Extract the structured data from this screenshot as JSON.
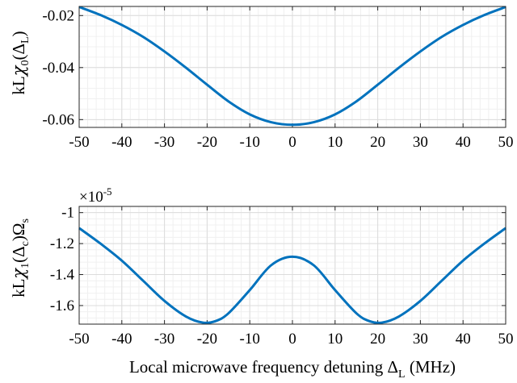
{
  "chart_data": [
    {
      "type": "line",
      "ylabel": {
        "base": "kL",
        "greek": "χ",
        "sub0": "0",
        "open": "(",
        "delta": "Δ",
        "sub1": "L",
        "close": ")"
      },
      "xlim": [
        -50,
        50
      ],
      "ylim": [
        -0.063,
        -0.0165
      ],
      "xticks": [
        -50,
        -40,
        -30,
        -20,
        -10,
        0,
        10,
        20,
        30,
        40,
        50
      ],
      "xtick_labels": [
        "-50",
        "-40",
        "-30",
        "-20",
        "-10",
        "0",
        "10",
        "20",
        "30",
        "40",
        "50"
      ],
      "yticks": [
        -0.06,
        -0.04,
        -0.02
      ],
      "ytick_labels": [
        "-0.06",
        "-0.04",
        "-0.02"
      ],
      "grid": true,
      "minor_grid": true,
      "series": [
        {
          "color": "#0072BD",
          "x": [
            -50,
            -45,
            -40,
            -35,
            -30,
            -25,
            -20,
            -15,
            -10,
            -5,
            0,
            5,
            10,
            15,
            20,
            25,
            30,
            35,
            40,
            45,
            50
          ],
          "y": [
            -0.0167,
            -0.0198,
            -0.0236,
            -0.0282,
            -0.0338,
            -0.04,
            -0.0466,
            -0.053,
            -0.058,
            -0.061,
            -0.062,
            -0.061,
            -0.058,
            -0.053,
            -0.0466,
            -0.04,
            -0.0338,
            -0.0282,
            -0.0236,
            -0.0198,
            -0.0167
          ]
        }
      ]
    },
    {
      "type": "line",
      "ylabel": {
        "base": "kL",
        "greek": "χ",
        "sub0": "1",
        "open": "(",
        "delta": "Δ",
        "sub1": "c",
        "close": ")",
        "omega": "Ω",
        "sub2": "s"
      },
      "exponent_label": {
        "base": "×10",
        "sup": "-5"
      },
      "xlabel": {
        "text": "Local microwave frequency detuning ",
        "delta": "Δ",
        "sub": "L",
        "unit": " (MHz)"
      },
      "xlim": [
        -50,
        50
      ],
      "ylim": [
        -1.72,
        -0.96
      ],
      "xticks": [
        -50,
        -40,
        -30,
        -20,
        -10,
        0,
        10,
        20,
        30,
        40,
        50
      ],
      "xtick_labels": [
        "-50",
        "-40",
        "-30",
        "-20",
        "-10",
        "0",
        "10",
        "20",
        "30",
        "40",
        "50"
      ],
      "yticks": [
        -1.6,
        -1.4,
        -1.2,
        -1.0
      ],
      "ytick_labels": [
        "-1.6",
        "-1.4",
        "-1.2",
        "-1"
      ],
      "grid": true,
      "minor_grid": true,
      "series": [
        {
          "color": "#0072BD",
          "x": [
            -50,
            -45,
            -40,
            -35,
            -30,
            -25,
            -21,
            -18,
            -15,
            -10,
            -5,
            0,
            5,
            10,
            15,
            18,
            21,
            25,
            30,
            35,
            40,
            45,
            50
          ],
          "y": [
            -1.1,
            -1.2,
            -1.31,
            -1.44,
            -1.57,
            -1.67,
            -1.71,
            -1.7,
            -1.65,
            -1.5,
            -1.34,
            -1.285,
            -1.34,
            -1.5,
            -1.65,
            -1.7,
            -1.71,
            -1.67,
            -1.57,
            -1.44,
            -1.31,
            -1.2,
            -1.1
          ]
        }
      ]
    }
  ]
}
